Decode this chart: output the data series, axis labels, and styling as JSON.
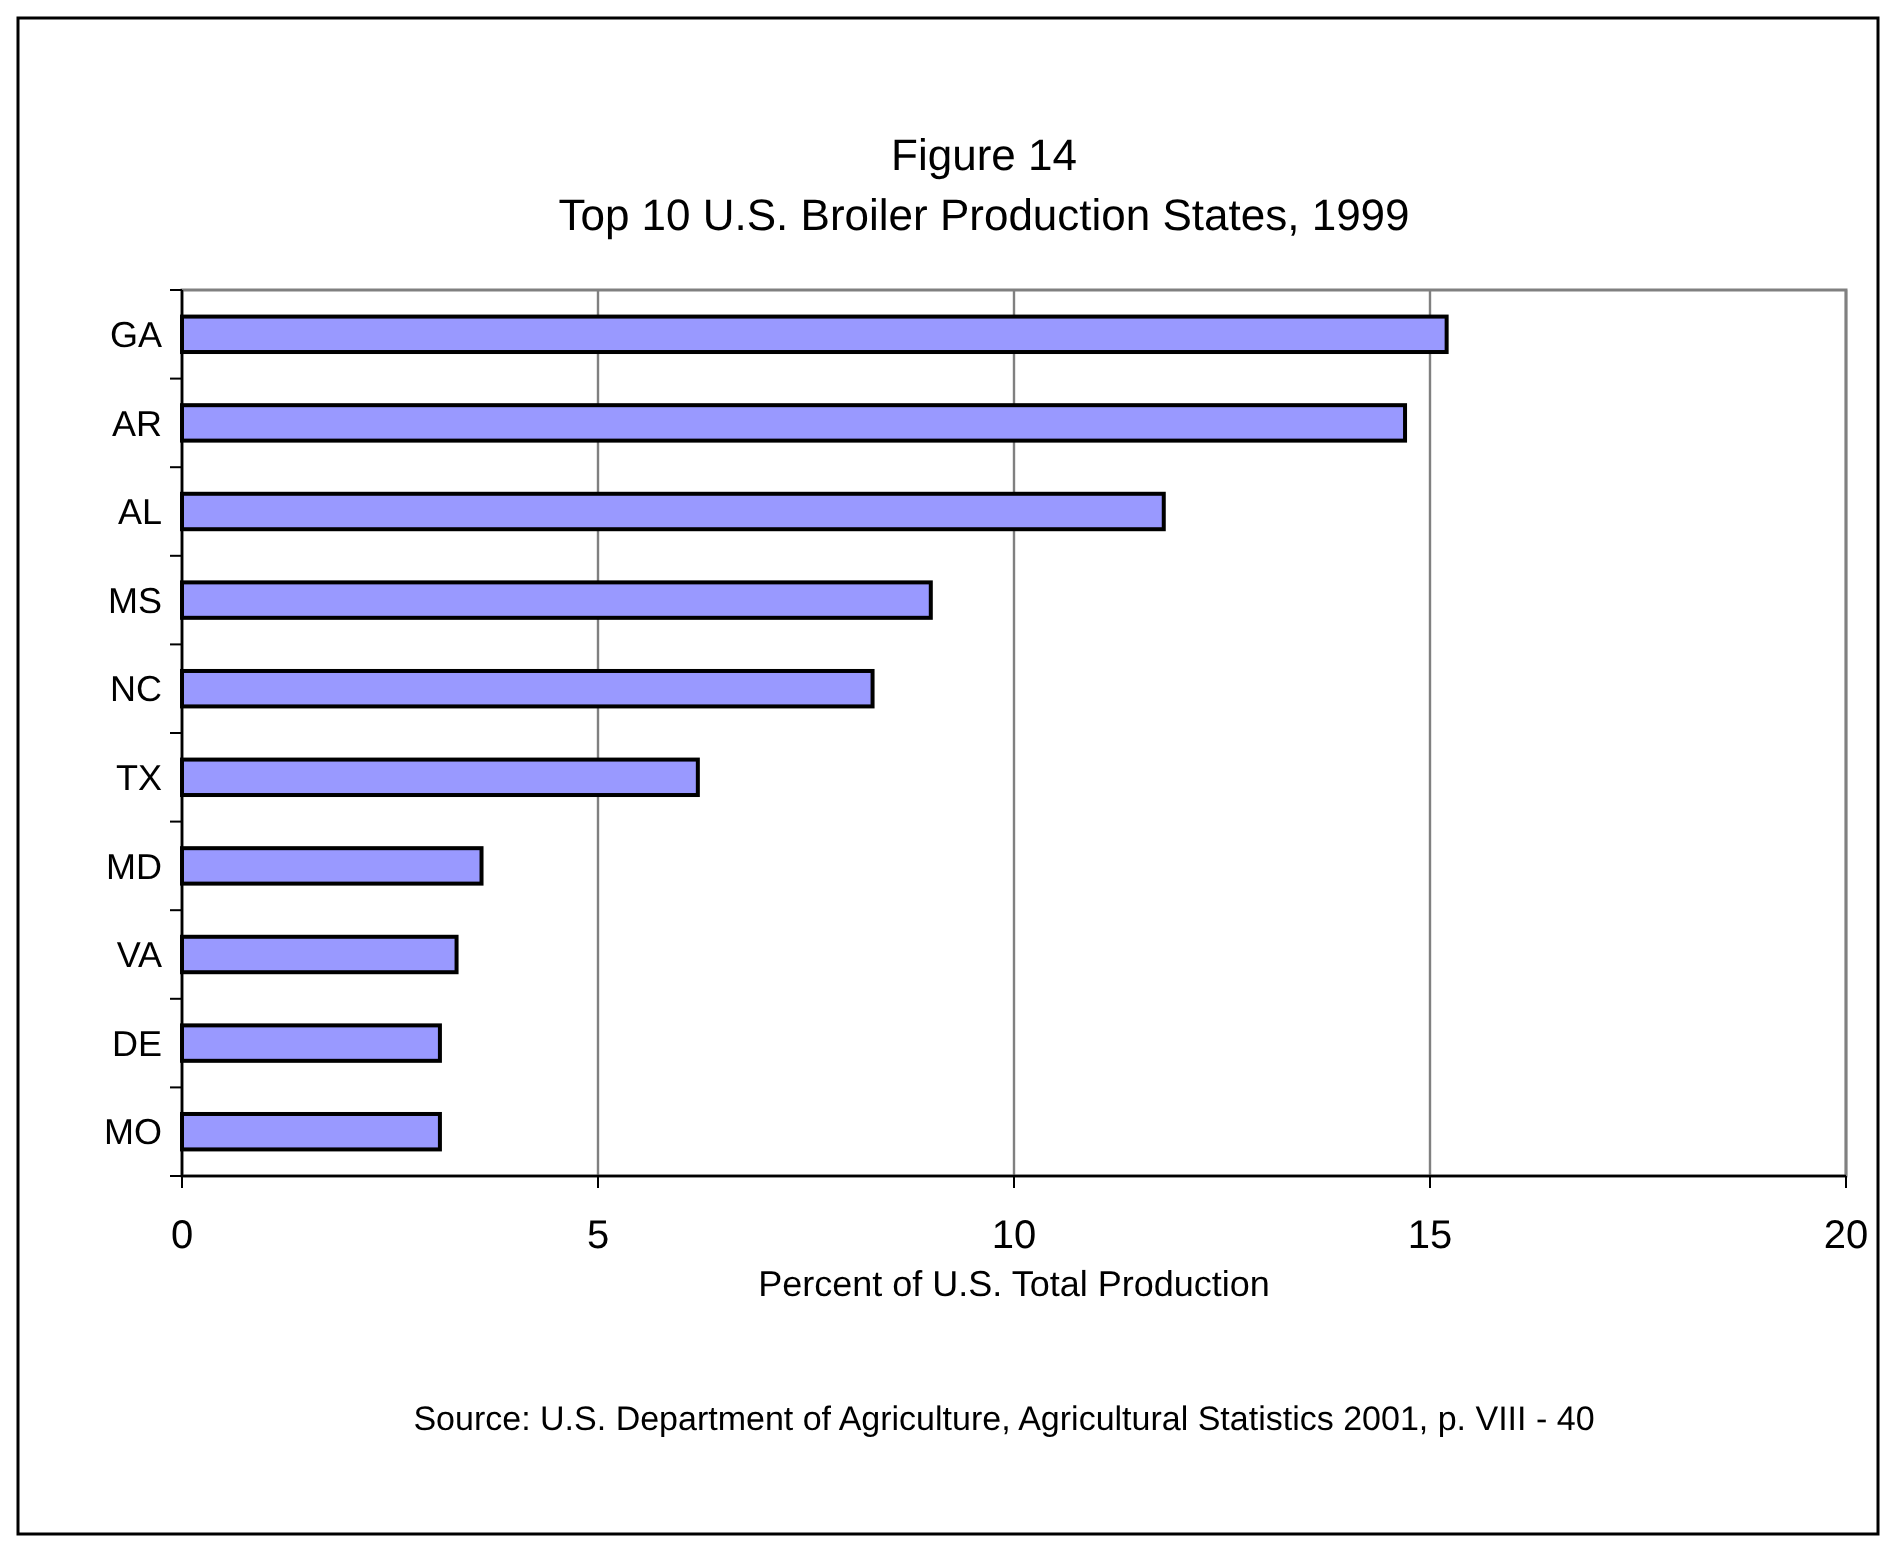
{
  "chart_data": {
    "type": "bar",
    "orientation": "horizontal",
    "title": "Figure 14\nTop 10 U.S. Broiler Production States, 1999",
    "xlabel": "Percent of U.S. Total Production",
    "categories": [
      "GA",
      "AR",
      "AL",
      "MS",
      "NC",
      "TX",
      "MD",
      "VA",
      "DE",
      "MO"
    ],
    "values": [
      15.2,
      14.7,
      11.8,
      9.0,
      8.3,
      6.2,
      3.6,
      3.3,
      3.1,
      3.1
    ],
    "color": "#9999ff",
    "xlim": [
      0,
      20
    ],
    "xticks": [
      0,
      5,
      10,
      15,
      20
    ],
    "grid": "x",
    "annotations": [
      "Source:  U.S. Department of Agriculture, Agricultural Statistics 2001, p. VIII - 40"
    ]
  }
}
